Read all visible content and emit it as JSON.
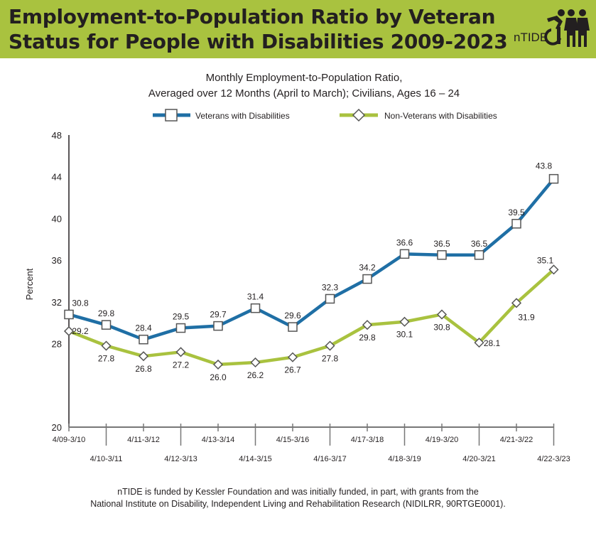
{
  "header": {
    "title_line1": "Employment-to-Population Ratio by Veteran",
    "title_line2": "Status for People with Disabilities 2009-2023",
    "logo_text": "nTIDE",
    "banner_color": "#a9c23f"
  },
  "chart_data": {
    "type": "line",
    "title_line1": "Monthly Employment-to-Population Ratio,",
    "title_line2": "Averaged over 12 Months (April to March); Civilians, Ages 16 – 24",
    "ylabel": "Percent",
    "ylim": [
      20,
      48
    ],
    "yticks": [
      20,
      24,
      28,
      32,
      36,
      40,
      44,
      48
    ],
    "ytick_labels": [
      "20",
      "",
      "28",
      "32",
      "36",
      "40",
      "44",
      "48"
    ],
    "grid": false,
    "legend_placement": "top",
    "categories": [
      "4/09-3/10",
      "4/10-3/11",
      "4/11-3/12",
      "4/12-3/13",
      "4/13-3/14",
      "4/14-3/15",
      "4/15-3/16",
      "4/16-3/17",
      "4/17-3/18",
      "4/18-3/19",
      "4/19-3/20",
      "4/20-3/21",
      "4/21-3/22",
      "4/22-3/23"
    ],
    "series": [
      {
        "name": "Veterans with Disabilities",
        "color": "#1f6fa5",
        "marker": "square",
        "values": [
          30.8,
          29.8,
          28.4,
          29.5,
          29.7,
          31.4,
          29.6,
          32.3,
          34.2,
          36.6,
          36.5,
          36.5,
          39.5,
          43.8
        ],
        "labels": [
          "30.8",
          "29.8",
          "28.4",
          "29.5",
          "29.7",
          "31.4",
          "29.6",
          "32.3",
          "34.2",
          "36.6",
          "36.5",
          "36.5",
          "39.5",
          "43.8"
        ]
      },
      {
        "name": "Non-Veterans with Disabilities",
        "color": "#a9c23f",
        "marker": "diamond",
        "values": [
          29.2,
          27.8,
          26.8,
          27.2,
          26.0,
          26.2,
          26.7,
          27.8,
          29.8,
          30.1,
          30.8,
          28.1,
          31.9,
          35.1
        ],
        "labels": [
          "29.2",
          "27.8",
          "26.8",
          "27.2",
          "26.0",
          "26.2",
          "26.7",
          "27.8",
          "29.8",
          "30.1",
          "30.8",
          "28.1",
          "31.9",
          "35.1"
        ]
      }
    ]
  },
  "footer": {
    "line1": "nTIDE is funded by Kessler Foundation and was initially funded, in part, with grants from the",
    "line2": "National Institute on Disability, Independent Living and Rehabilitation Research (NIDILRR, 90RTGE0001)."
  }
}
